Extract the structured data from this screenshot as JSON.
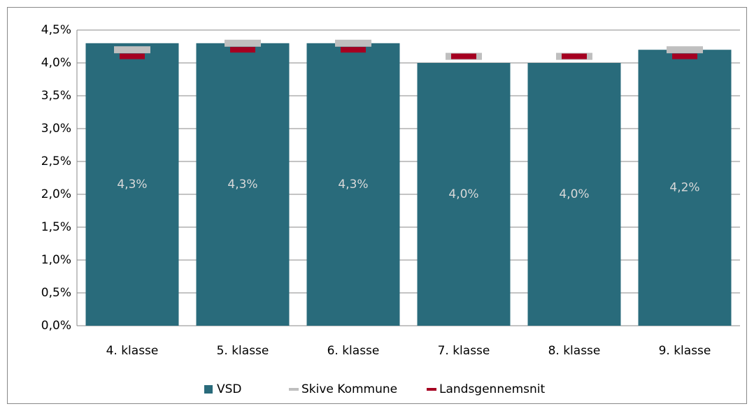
{
  "chart_data": {
    "type": "bar",
    "categories": [
      "4. klasse",
      "5. klasse",
      "6. klasse",
      "7. klasse",
      "8. klasse",
      "9. klasse"
    ],
    "series": [
      {
        "name": "VSD",
        "color": "#296b7b",
        "values": [
          4.3,
          4.3,
          4.3,
          4.0,
          4.0,
          4.2
        ],
        "value_labels": [
          "4,3%",
          "4,3%",
          "4,3%",
          "4,0%",
          "4,0%",
          "4,2%"
        ]
      },
      {
        "name": "Skive Kommune",
        "color": "#bfbfbf",
        "values": [
          4.2,
          4.3,
          4.3,
          4.1,
          4.1,
          4.2
        ]
      },
      {
        "name": "Landsgennemsnit",
        "color": "#a50021",
        "values": [
          4.1,
          4.2,
          4.2,
          4.1,
          4.1,
          4.1
        ]
      }
    ],
    "ylim": [
      0,
      4.5
    ],
    "yticks": [
      {
        "value": 0,
        "label": "0,0%"
      },
      {
        "value": 0.5,
        "label": "0,5%"
      },
      {
        "value": 1,
        "label": "1,0%"
      },
      {
        "value": 1.5,
        "label": "1,5%"
      },
      {
        "value": 2,
        "label": "2,0%"
      },
      {
        "value": 2.5,
        "label": "2,5%"
      },
      {
        "value": 3,
        "label": "3,0%"
      },
      {
        "value": 3.5,
        "label": "3,5%"
      },
      {
        "value": 4,
        "label": "4,0%"
      },
      {
        "value": 4.5,
        "label": "4,5%"
      }
    ],
    "grid": true,
    "legend": "bottom"
  }
}
